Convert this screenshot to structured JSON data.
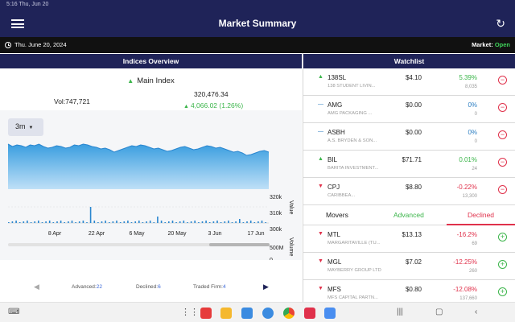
{
  "status_bar": {
    "text": "5:16  Thu, Jun 20"
  },
  "app_bar": {
    "title": "Market Summary"
  },
  "date_bar": {
    "date": "Thu. June 20, 2024",
    "market_label": "Market: ",
    "market_status": "Open"
  },
  "indices": {
    "header": "Indices Overview",
    "name": "Main Index",
    "volume": "Vol:747,721",
    "value": "320,476.34",
    "change": "4,066.02 (1.26%)",
    "period": "3m",
    "axis_right_values": [
      "320k",
      "310k",
      "300k"
    ],
    "axis_volume_values": [
      "500M",
      "0"
    ],
    "axis_value_label": "Value",
    "axis_volume_label": "Volume",
    "date_ticks": [
      "8 Apr",
      "22 Apr",
      "6 May",
      "20 May",
      "3 Jun",
      "17 Jun"
    ],
    "advanced_label": "Advanced:",
    "advanced": "22",
    "declined_label": "Declined:",
    "declined": "6",
    "traded_label": "Traded Firm:",
    "traded": "4"
  },
  "watchlist": {
    "header": "Watchlist",
    "items": [
      {
        "symbol": "138SL",
        "name": "138 STUDENT LIVIN...",
        "price": "$4.10",
        "pct": "5.39%",
        "volume": "8,035",
        "dir": "up"
      },
      {
        "symbol": "AMG",
        "name": "AMG PACKAGING ...",
        "price": "$0.00",
        "pct": "0%",
        "volume": "0",
        "dir": "flat"
      },
      {
        "symbol": "ASBH",
        "name": "A.S. BRYDEN & SON...",
        "price": "$0.00",
        "pct": "0%",
        "volume": "0",
        "dir": "flat"
      },
      {
        "symbol": "BIL",
        "name": "BARITA INVESTMENT...",
        "price": "$71.71",
        "pct": "0.01%",
        "volume": "24",
        "dir": "up"
      },
      {
        "symbol": "CPJ",
        "name": "CARIBBEA...",
        "price": "$8.80",
        "pct": "-0.22%",
        "volume": "13,300",
        "dir": "down"
      }
    ]
  },
  "movers": {
    "tabs": {
      "movers": "Movers",
      "advanced": "Advanced",
      "declined": "Declined"
    },
    "items": [
      {
        "symbol": "MTL",
        "name": "MARGARITAVILLE (TU...",
        "price": "$13.13",
        "pct": "-16.2%",
        "volume": "69"
      },
      {
        "symbol": "MGL",
        "name": "MAYBERRY GROUP LTD",
        "price": "$7.02",
        "pct": "-12.25%",
        "volume": "260"
      },
      {
        "symbol": "MFS",
        "name": "MFS CAPITAL PARTN...",
        "price": "$0.80",
        "pct": "-12.08%",
        "volume": "137,660"
      }
    ]
  },
  "colors": {
    "brand": "#1f2358",
    "up": "#3bb54a",
    "down": "#e0314b",
    "flat": "#2b7ec2",
    "chart": "#3a9ee0"
  }
}
